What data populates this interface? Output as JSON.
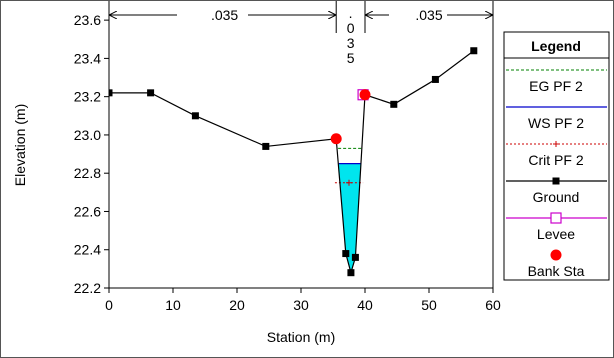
{
  "chart_data": {
    "type": "line",
    "xlabel": "Station (m)",
    "ylabel": "Elevation (m)",
    "xlim": [
      0,
      60
    ],
    "ylim": [
      22.2,
      23.7
    ],
    "x_ticks": [
      "0",
      "10",
      "20",
      "30",
      "40",
      "50",
      "60"
    ],
    "y_ticks": [
      "22.2",
      "22.4",
      "22.6",
      "22.8",
      "23.0",
      "23.2",
      "23.4",
      "23.6"
    ],
    "manning": {
      "left": ".035",
      "channel": ".035",
      "right": ".035",
      "left_bank_sta": 35.5,
      "right_bank_sta": 40.0
    },
    "series": [
      {
        "name": "Ground",
        "color": "#000000",
        "points": [
          [
            0,
            23.22
          ],
          [
            6.5,
            23.22
          ],
          [
            13.5,
            23.1
          ],
          [
            24.5,
            22.94
          ],
          [
            35.5,
            22.98
          ],
          [
            37.0,
            22.38
          ],
          [
            37.8,
            22.28
          ],
          [
            38.5,
            22.36
          ],
          [
            40.0,
            23.21
          ],
          [
            44.5,
            23.16
          ],
          [
            51.0,
            23.29
          ],
          [
            57.0,
            23.44
          ]
        ]
      },
      {
        "name": "EG PF 2",
        "color": "#008000",
        "y": 22.93,
        "x_range": [
          35.8,
          39.5
        ]
      },
      {
        "name": "WS PF 2",
        "color": "#0000cc",
        "y": 22.85,
        "x_range": [
          35.9,
          39.3
        ]
      },
      {
        "name": "Crit PF 2",
        "color": "#cc0000",
        "y": 22.75,
        "x_range": [
          35.3,
          39.7
        ]
      },
      {
        "name": "Levee",
        "color": "#cc00cc",
        "points": [
          [
            39.7,
            23.21
          ]
        ]
      },
      {
        "name": "Bank Sta",
        "color": "#ff0000",
        "points": [
          [
            35.5,
            22.98
          ],
          [
            40.0,
            23.21
          ]
        ]
      }
    ],
    "legend": {
      "title": "Legend",
      "position": "right",
      "items": [
        "EG PF 2",
        "WS PF 2",
        "Crit PF 2",
        "Ground",
        "Levee",
        "Bank Sta"
      ]
    },
    "water_fill_color": "#00e5ee"
  }
}
